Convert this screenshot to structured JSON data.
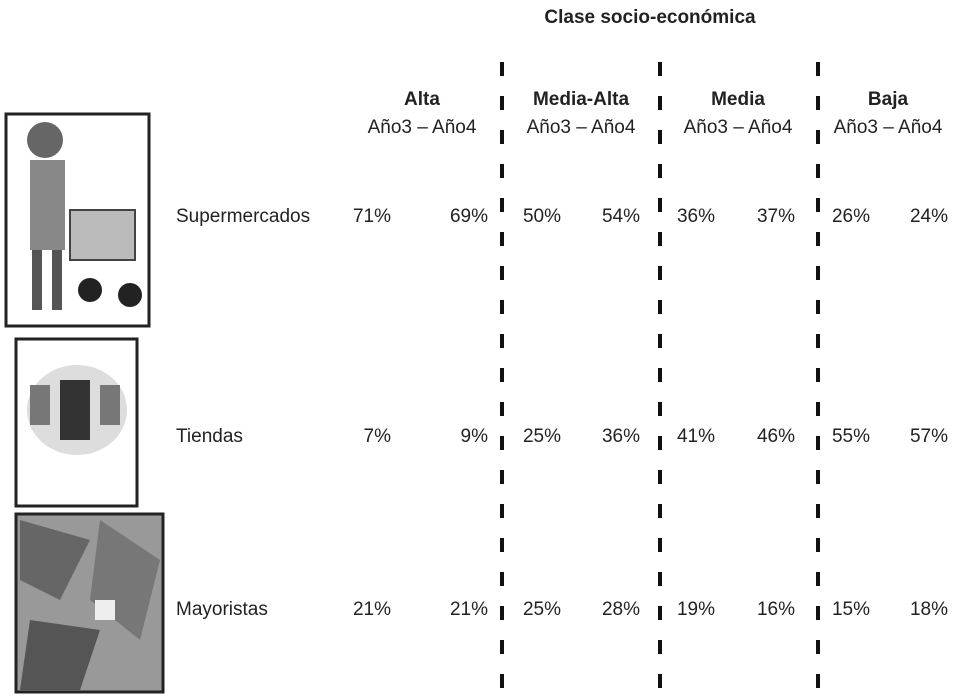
{
  "title": "Clase socio-económica",
  "groups": [
    {
      "name": "Alta",
      "years": "Año3 – Año4"
    },
    {
      "name": "Media-Alta",
      "years": "Año3 – Año4"
    },
    {
      "name": "Media",
      "years": "Año3 – Año4"
    },
    {
      "name": "Baja",
      "years": "Año3 – Año4"
    }
  ],
  "rows": [
    {
      "label": "Supermercados",
      "values": [
        "71%",
        "69%",
        "50%",
        "54%",
        "36%",
        "37%",
        "26%",
        "24%"
      ]
    },
    {
      "label": "Tiendas",
      "values": [
        "7%",
        "9%",
        "25%",
        "36%",
        "41%",
        "46%",
        "55%",
        "57%"
      ]
    },
    {
      "label": "Mayoristas",
      "values": [
        "21%",
        "21%",
        "25%",
        "28%",
        "19%",
        "16%",
        "15%",
        "18%"
      ]
    }
  ]
}
